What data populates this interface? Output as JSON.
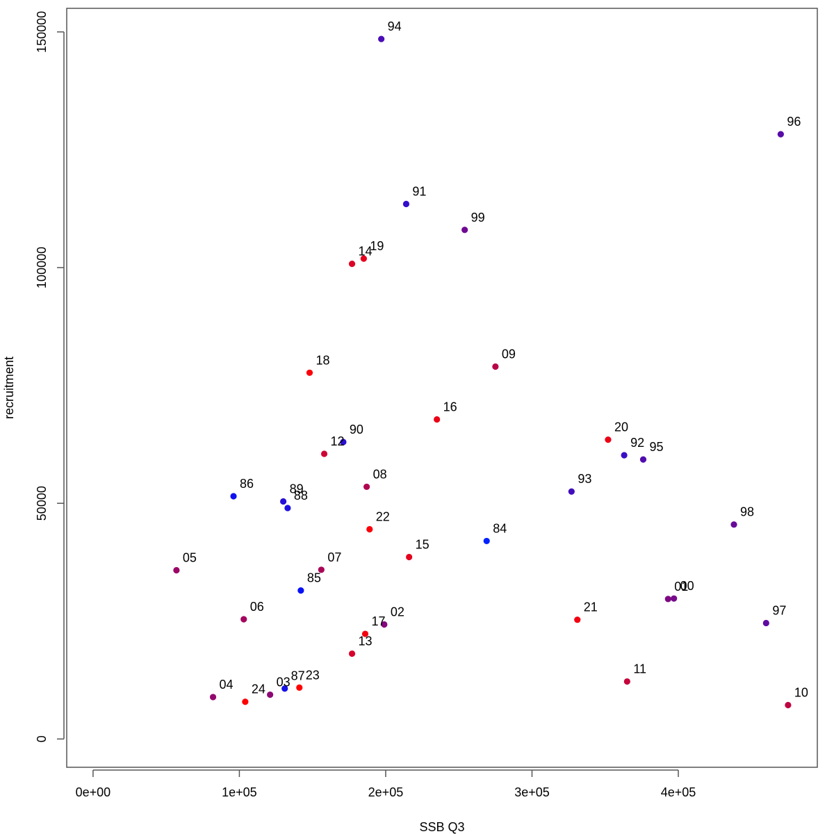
{
  "chart_data": {
    "type": "scatter",
    "xlabel": "SSB Q3",
    "ylabel": "recruitment",
    "xlim": [
      -18000,
      495000
    ],
    "ylim": [
      -6000,
      155000
    ],
    "x_ticks": [
      0,
      100000,
      200000,
      300000,
      400000
    ],
    "x_tick_labels": [
      "0e+00",
      "1e+05",
      "2e+05",
      "3e+05",
      "4e+05"
    ],
    "y_ticks": [
      0,
      50000,
      100000,
      150000
    ],
    "y_tick_labels": [
      "0",
      "50000",
      "100000",
      "150000"
    ],
    "grid": false,
    "legend": "none",
    "colors": {
      "point_early": "#0000ff",
      "point_late": "#ff0000"
    },
    "points": [
      {
        "label": "84",
        "x": 269000,
        "y": 42000,
        "color": "#0022ff"
      },
      {
        "label": "85",
        "x": 142000,
        "y": 31500,
        "color": "#0711f6"
      },
      {
        "label": "86",
        "x": 96000,
        "y": 51500,
        "color": "#0f11ee"
      },
      {
        "label": "87",
        "x": 131000,
        "y": 10700,
        "color": "#1611e8"
      },
      {
        "label": "88",
        "x": 133000,
        "y": 49000,
        "color": "#1e10e0"
      },
      {
        "label": "89",
        "x": 130000,
        "y": 50400,
        "color": "#250fd9"
      },
      {
        "label": "90",
        "x": 171000,
        "y": 63000,
        "color": "#2c0fd2"
      },
      {
        "label": "91",
        "x": 214000,
        "y": 113500,
        "color": "#340ecb"
      },
      {
        "label": "92",
        "x": 363000,
        "y": 60200,
        "color": "#3b0ec4"
      },
      {
        "label": "93",
        "x": 327000,
        "y": 52500,
        "color": "#420dbd"
      },
      {
        "label": "94",
        "x": 197000,
        "y": 148500,
        "color": "#4a0db5"
      },
      {
        "label": "95",
        "x": 376000,
        "y": 59300,
        "color": "#510cae"
      },
      {
        "label": "96",
        "x": 470000,
        "y": 128300,
        "color": "#580ca7"
      },
      {
        "label": "97",
        "x": 460000,
        "y": 24600,
        "color": "#600ba0"
      },
      {
        "label": "98",
        "x": 438000,
        "y": 45500,
        "color": "#670b99"
      },
      {
        "label": "99",
        "x": 254000,
        "y": 108000,
        "color": "#6e0a92"
      },
      {
        "label": "00",
        "x": 397000,
        "y": 29800,
        "color": "#760a8a"
      },
      {
        "label": "01",
        "x": 393000,
        "y": 29700,
        "color": "#7d0983"
      },
      {
        "label": "02",
        "x": 199000,
        "y": 24300,
        "color": "#84097c"
      },
      {
        "label": "03",
        "x": 121000,
        "y": 9400,
        "color": "#8c0875"
      },
      {
        "label": "04",
        "x": 82000,
        "y": 8900,
        "color": "#93086e"
      },
      {
        "label": "05",
        "x": 57000,
        "y": 35800,
        "color": "#9a0766"
      },
      {
        "label": "06",
        "x": 103000,
        "y": 25400,
        "color": "#a2075f"
      },
      {
        "label": "07",
        "x": 156000,
        "y": 35900,
        "color": "#a90658"
      },
      {
        "label": "08",
        "x": 187000,
        "y": 53500,
        "color": "#b00651"
      },
      {
        "label": "09",
        "x": 275000,
        "y": 79000,
        "color": "#b8054a"
      },
      {
        "label": "10",
        "x": 475000,
        "y": 7200,
        "color": "#bf0542"
      },
      {
        "label": "11",
        "x": 365000,
        "y": 12200,
        "color": "#c6043b"
      },
      {
        "label": "12",
        "x": 158000,
        "y": 60500,
        "color": "#ce0434"
      },
      {
        "label": "13",
        "x": 177000,
        "y": 18100,
        "color": "#d5032d"
      },
      {
        "label": "14",
        "x": 177000,
        "y": 100800,
        "color": "#dc0326"
      },
      {
        "label": "15",
        "x": 216000,
        "y": 38600,
        "color": "#e4021e"
      },
      {
        "label": "16",
        "x": 235000,
        "y": 67800,
        "color": "#eb0217"
      },
      {
        "label": "17",
        "x": 186000,
        "y": 22300,
        "color": "#f20110"
      },
      {
        "label": "18",
        "x": 148000,
        "y": 77700,
        "color": "#fa0109"
      },
      {
        "label": "19",
        "x": 185000,
        "y": 101900,
        "color": "#e4021e"
      },
      {
        "label": "20",
        "x": 352000,
        "y": 63500,
        "color": "#eb0217"
      },
      {
        "label": "21",
        "x": 331000,
        "y": 25300,
        "color": "#f20110"
      },
      {
        "label": "22",
        "x": 189000,
        "y": 44500,
        "color": "#fa0109"
      },
      {
        "label": "23",
        "x": 141000,
        "y": 10900,
        "color": "#ff0000"
      },
      {
        "label": "24",
        "x": 104000,
        "y": 7900,
        "color": "#ff0000"
      }
    ]
  }
}
